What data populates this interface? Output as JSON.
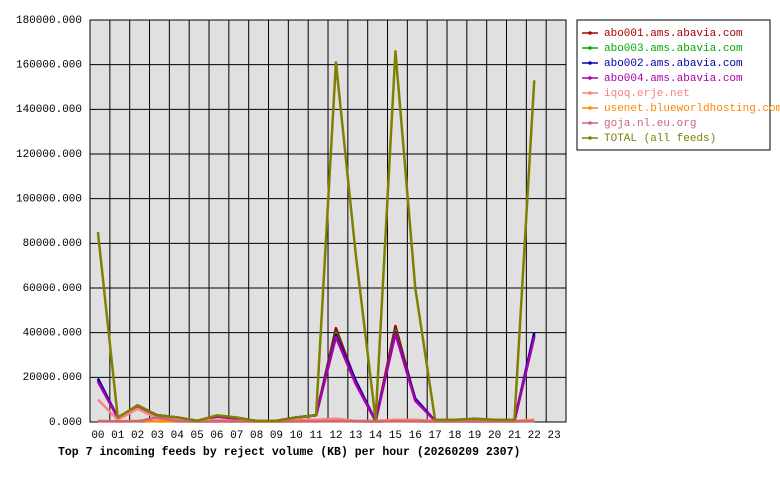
{
  "chart_data": {
    "type": "line",
    "title": "Top 7 incoming feeds by reject volume (KB) per hour (20260209 2307)",
    "categories": [
      "00",
      "01",
      "02",
      "03",
      "04",
      "05",
      "06",
      "07",
      "08",
      "09",
      "10",
      "11",
      "12",
      "13",
      "14",
      "15",
      "16",
      "17",
      "18",
      "19",
      "20",
      "21",
      "22",
      "23"
    ],
    "ylim": [
      0,
      180000
    ],
    "yticks": [
      {
        "value": 0,
        "label": "0.000"
      },
      {
        "value": 20000,
        "label": "20000.000"
      },
      {
        "value": 40000,
        "label": "40000.000"
      },
      {
        "value": 60000,
        "label": "60000.000"
      },
      {
        "value": 80000,
        "label": "80000.000"
      },
      {
        "value": 100000,
        "label": "100000.000"
      },
      {
        "value": 120000,
        "label": "120000.000"
      },
      {
        "value": 140000,
        "label": "140000.000"
      },
      {
        "value": 160000,
        "label": "160000.000"
      },
      {
        "value": 180000,
        "label": "180000.000"
      }
    ],
    "grid": true,
    "legend": "right",
    "series": [
      {
        "name": "abo001.ams.abavia.com",
        "color": "#aa0000",
        "values": [
          19000,
          2000,
          7000,
          3000,
          2000,
          500,
          2500,
          1500,
          500,
          500,
          2000,
          3000,
          42000,
          18000,
          500,
          43000,
          10000,
          500,
          500,
          1000,
          500,
          500,
          39000,
          null
        ]
      },
      {
        "name": "abo003.ams.abavia.com",
        "color": "#00aa00",
        "values": [
          18500,
          2000,
          7000,
          3000,
          2000,
          500,
          2500,
          1500,
          500,
          500,
          2000,
          3000,
          40000,
          17500,
          500,
          41000,
          10000,
          500,
          500,
          1000,
          500,
          500,
          38500,
          null
        ]
      },
      {
        "name": "abo002.ams.abavia.com",
        "color": "#0000aa",
        "values": [
          19500,
          2000,
          7000,
          3000,
          2000,
          500,
          2500,
          1500,
          500,
          500,
          2000,
          3000,
          39000,
          18500,
          500,
          40000,
          10500,
          500,
          500,
          1000,
          500,
          500,
          40000,
          null
        ]
      },
      {
        "name": "abo004.ams.abavia.com",
        "color": "#aa00aa",
        "values": [
          18000,
          2000,
          7000,
          3000,
          2000,
          500,
          2500,
          1500,
          500,
          500,
          2000,
          3000,
          38000,
          17000,
          500,
          39500,
          9500,
          500,
          500,
          1000,
          500,
          500,
          38000,
          null
        ]
      },
      {
        "name": "iqoq.erje.net",
        "color": "#ff8080",
        "values": [
          10000,
          1000,
          6000,
          1500,
          1000,
          500,
          1000,
          500,
          500,
          500,
          1000,
          1000,
          1500,
          500,
          500,
          1000,
          1000,
          500,
          500,
          500,
          500,
          500,
          1000,
          null
        ]
      },
      {
        "name": "usenet.blueworldhosting.com",
        "color": "#ff8800",
        "values": [
          500,
          300,
          500,
          300,
          300,
          200,
          300,
          300,
          200,
          200,
          300,
          300,
          500,
          300,
          200,
          500,
          300,
          200,
          200,
          300,
          200,
          200,
          500,
          null
        ]
      },
      {
        "name": "goja.nl.eu.org",
        "color": "#cc6677",
        "values": [
          300,
          200,
          300,
          2000,
          300,
          200,
          300,
          200,
          200,
          200,
          300,
          300,
          300,
          300,
          200,
          300,
          300,
          200,
          200,
          300,
          200,
          200,
          300,
          null
        ]
      },
      {
        "name": "TOTAL (all feeds)",
        "color": "#808000",
        "values": [
          85000,
          2000,
          7500,
          3000,
          2000,
          500,
          3000,
          2000,
          500,
          500,
          2000,
          3000,
          161000,
          75000,
          1000,
          166000,
          60000,
          1000,
          1000,
          1500,
          1000,
          1000,
          153000,
          null
        ]
      }
    ]
  }
}
